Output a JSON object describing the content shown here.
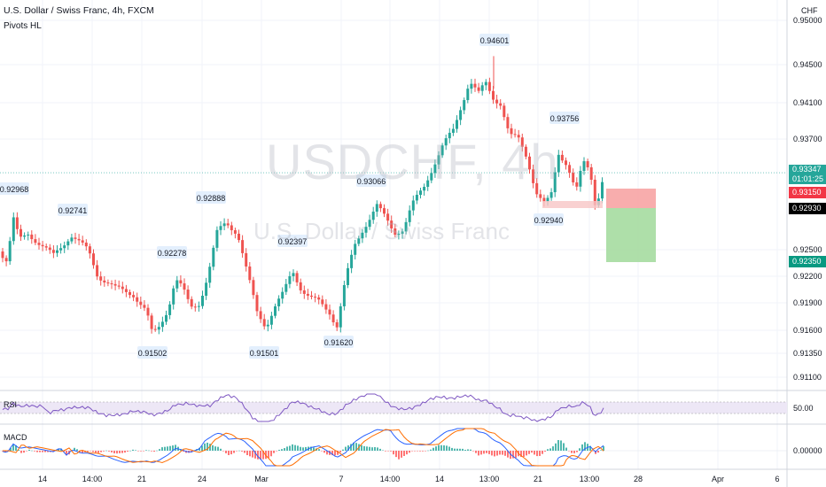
{
  "header": {
    "symbol_title": "U.S. Dollar / Swiss Franc, 4h, FXCM",
    "indicator": "Pivots HL",
    "currency": "CHF"
  },
  "watermark": {
    "ticker": "USDCHF, 4h",
    "name": "U.S. Dollar / Swiss Franc"
  },
  "price_axis": {
    "ticks": [
      "0.95000",
      "0.94500",
      "0.94100",
      "0.93700",
      "0.92500",
      "0.92200",
      "0.91900",
      "0.91600",
      "0.91350",
      "0.91100"
    ]
  },
  "price_tags": {
    "last": {
      "value": "0.93347",
      "countdown": "01:01:25",
      "color": "#26a69a"
    },
    "stop": {
      "value": "0.93150",
      "color": "#f23645"
    },
    "entry": {
      "value": "0.92930",
      "color": "#000000"
    },
    "target": {
      "value": "0.92350",
      "color": "#089981"
    }
  },
  "pivot_labels": [
    "0.92968",
    "0.92741",
    "0.92888",
    "0.92278",
    "0.91502",
    "0.91501",
    "0.92397",
    "0.93066",
    "0.91620",
    "0.94601",
    "0.93756",
    "0.92940"
  ],
  "time_axis": [
    "14",
    "14:00",
    "21",
    "24",
    "Mar",
    "7",
    "14:00",
    "14",
    "13:00",
    "21",
    "13:00",
    "28",
    "Apr",
    "6"
  ],
  "rsi": {
    "label": "RSI",
    "level": "50.00"
  },
  "macd": {
    "label": "MACD",
    "level": "0.00000"
  },
  "colors": {
    "up": "#26a69a",
    "down": "#ef5350",
    "rsi_line": "#7e57c2",
    "macd_line": "#2962ff",
    "signal_line": "#ff6d00"
  }
}
